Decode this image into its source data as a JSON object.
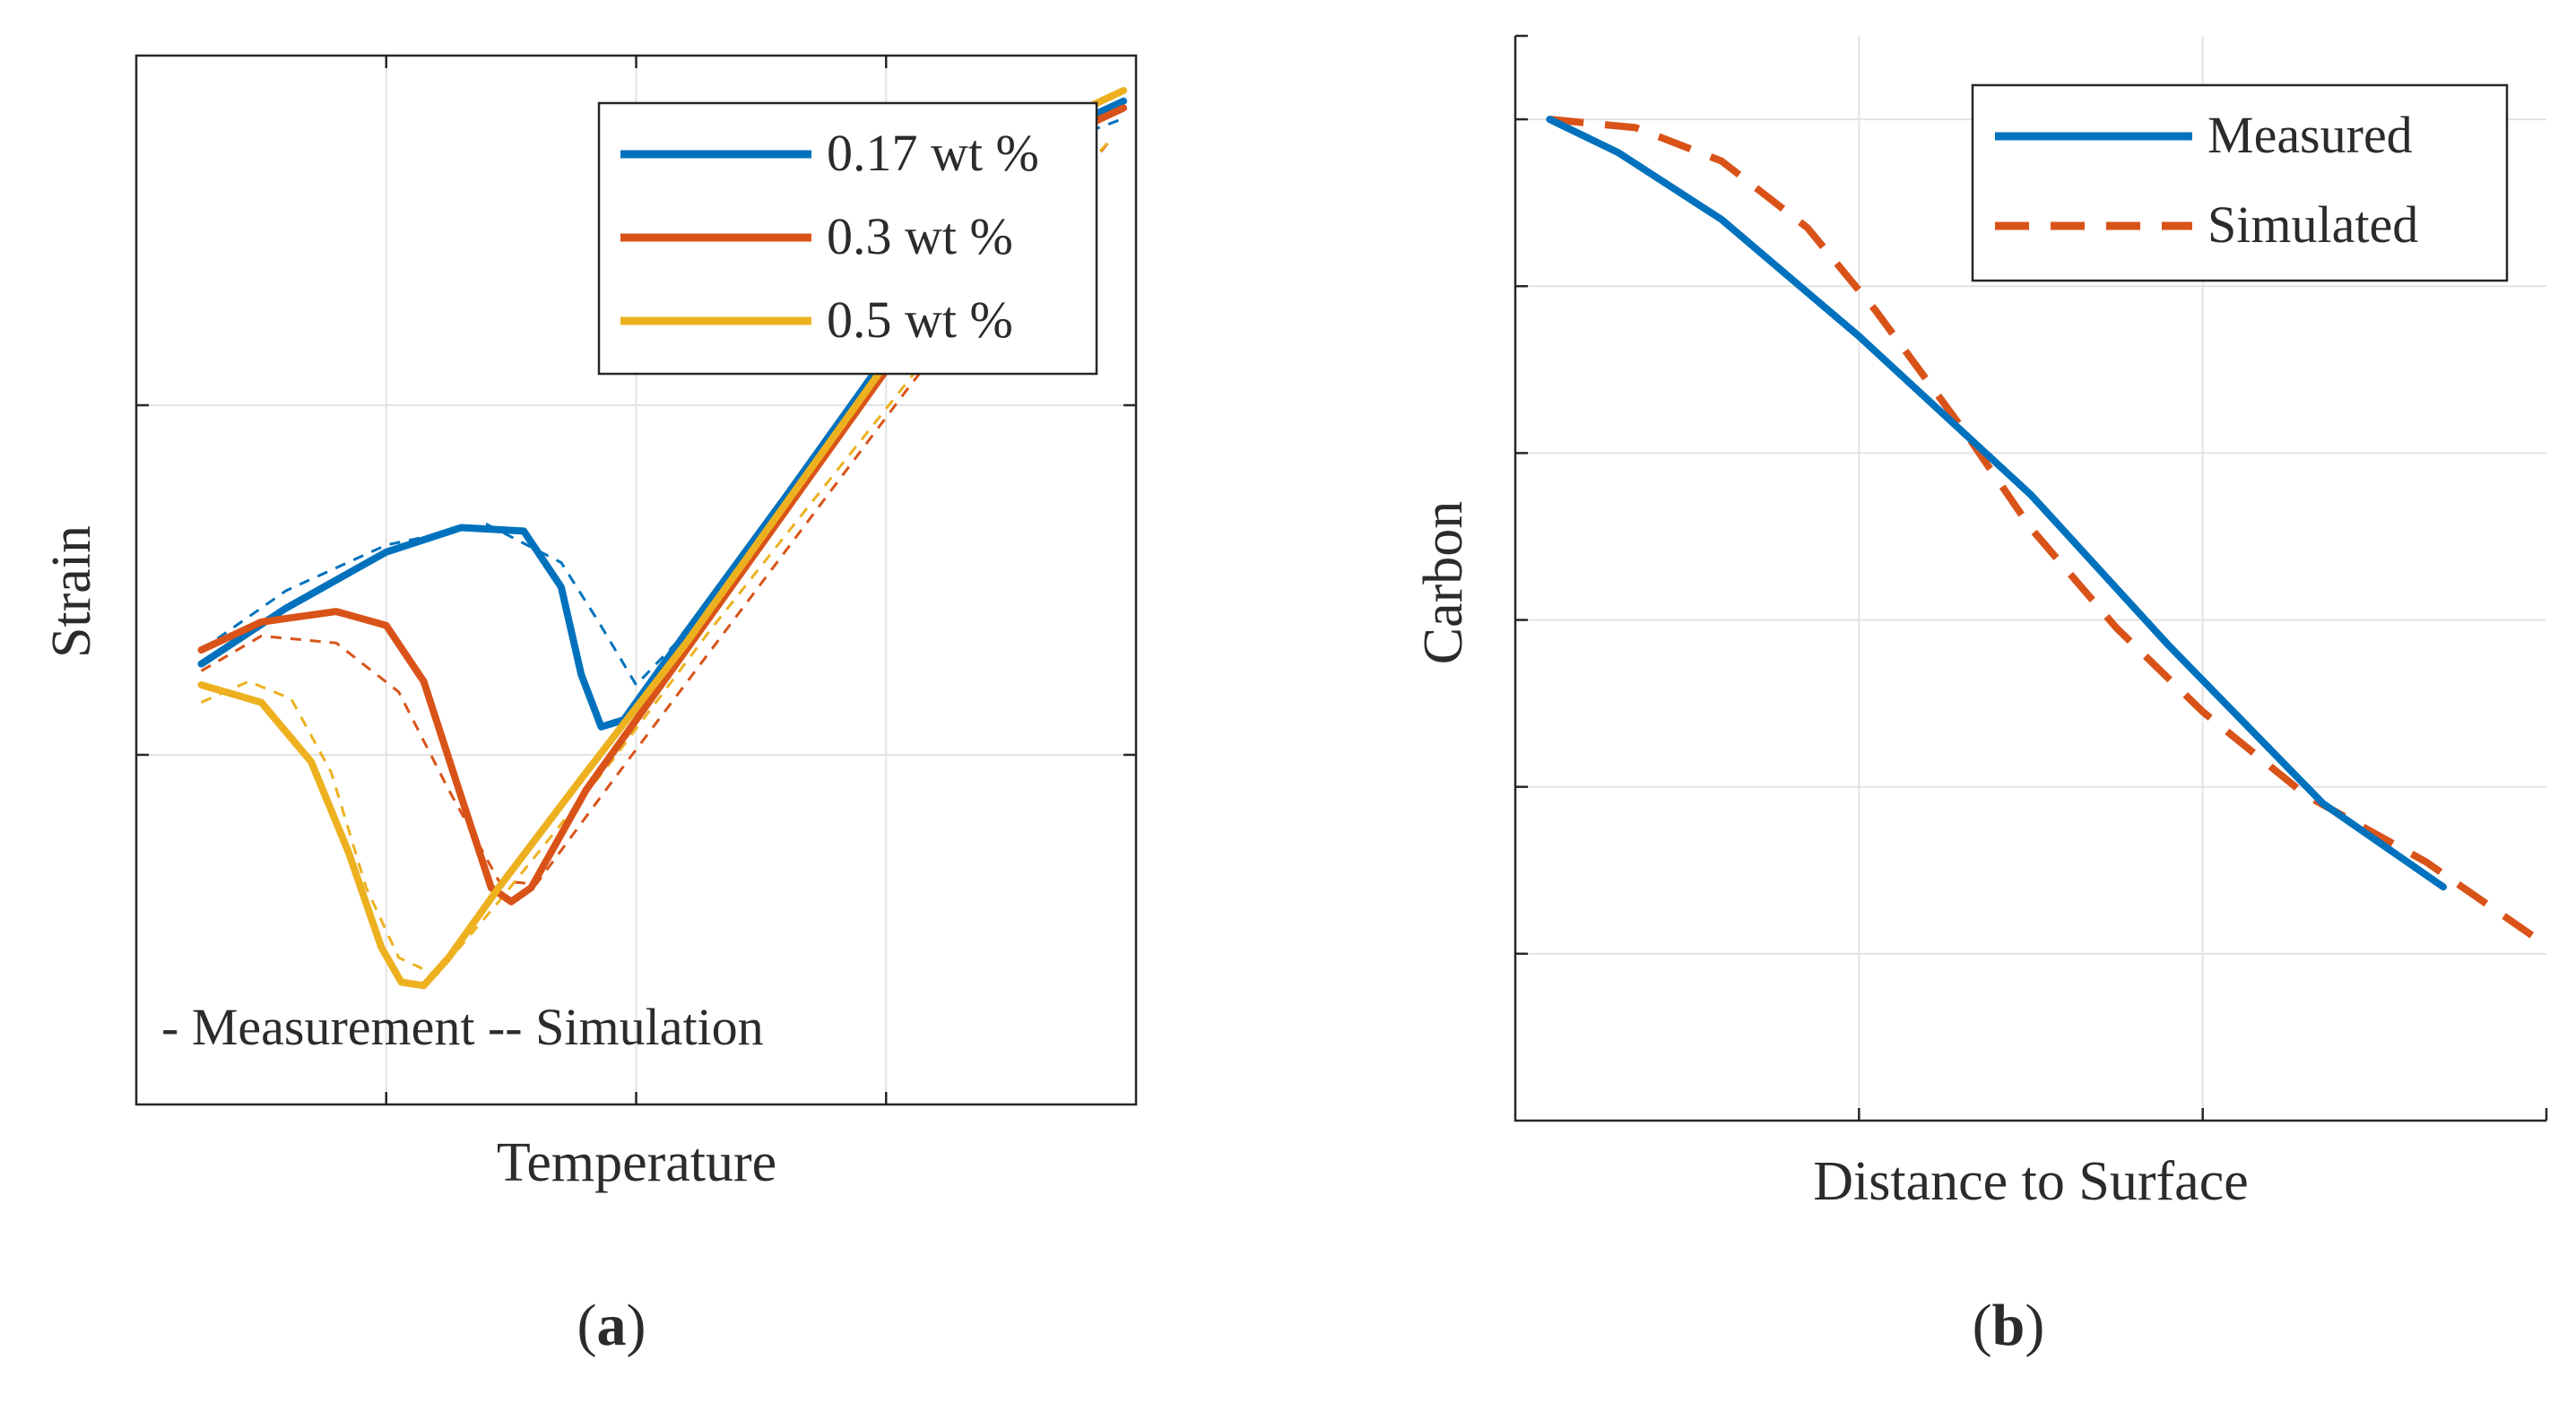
{
  "colors": {
    "blue": "#0072BD",
    "orange": "#D95319",
    "yellow": "#EDB120"
  },
  "panels": {
    "a": {
      "label_open": "(",
      "label_letter": "a",
      "label_close": ")"
    },
    "b": {
      "label_open": "(",
      "label_letter": "b",
      "label_close": ")"
    }
  },
  "chart_data": [
    {
      "type": "line",
      "xlabel": "Temperature",
      "ylabel": "Strain",
      "xlim": [
        0,
        4
      ],
      "ylim": [
        0,
        3
      ],
      "grid": true,
      "legend_position": "top-right",
      "annotation": "- Measurement -- Simulation",
      "series": [
        {
          "name": "0.17 wt %",
          "color": "#0072BD",
          "style": "solid",
          "x": [
            0.26,
            0.6,
            1.0,
            1.3,
            1.55,
            1.7,
            1.78,
            1.86,
            1.95,
            2.2,
            2.6,
            3.0,
            3.4,
            3.8,
            3.95
          ],
          "y": [
            1.26,
            1.42,
            1.58,
            1.65,
            1.64,
            1.48,
            1.23,
            1.08,
            1.1,
            1.35,
            1.74,
            2.14,
            2.54,
            2.82,
            2.87
          ]
        },
        {
          "name": "0.17 wt %",
          "color": "#0072BD",
          "style": "dashed",
          "x": [
            0.26,
            0.6,
            1.0,
            1.4,
            1.7,
            1.85,
            2.0,
            2.2,
            2.6,
            3.0,
            3.4,
            3.8,
            3.95
          ],
          "y": [
            1.3,
            1.47,
            1.6,
            1.66,
            1.55,
            1.38,
            1.2,
            1.35,
            1.74,
            2.12,
            2.52,
            2.78,
            2.82
          ]
        },
        {
          "name": "0.3 wt %",
          "color": "#D95319",
          "style": "solid",
          "x": [
            0.26,
            0.5,
            0.8,
            1.0,
            1.15,
            1.3,
            1.42,
            1.5,
            1.58,
            1.8,
            2.2,
            2.6,
            3.0,
            3.4,
            3.8,
            3.95
          ],
          "y": [
            1.3,
            1.38,
            1.41,
            1.37,
            1.21,
            0.88,
            0.62,
            0.58,
            0.62,
            0.9,
            1.3,
            1.7,
            2.1,
            2.5,
            2.8,
            2.85
          ]
        },
        {
          "name": "0.3 wt %",
          "color": "#D95319",
          "style": "dashed",
          "x": [
            0.26,
            0.5,
            0.8,
            1.05,
            1.25,
            1.45,
            1.6,
            1.9,
            2.3,
            2.7,
            3.1,
            3.5,
            3.9
          ],
          "y": [
            1.24,
            1.34,
            1.32,
            1.18,
            0.9,
            0.64,
            0.63,
            0.92,
            1.3,
            1.68,
            2.06,
            2.42,
            2.76
          ]
        },
        {
          "name": "0.5 wt %",
          "color": "#EDB120",
          "style": "solid",
          "x": [
            0.26,
            0.5,
            0.7,
            0.85,
            0.98,
            1.06,
            1.15,
            1.25,
            1.45,
            1.8,
            2.2,
            2.6,
            3.0,
            3.4,
            3.8,
            3.95
          ],
          "y": [
            1.2,
            1.15,
            0.98,
            0.72,
            0.45,
            0.35,
            0.34,
            0.42,
            0.62,
            0.95,
            1.32,
            1.72,
            2.12,
            2.52,
            2.85,
            2.9
          ]
        },
        {
          "name": "0.5 wt %",
          "color": "#EDB120",
          "style": "dashed",
          "x": [
            0.26,
            0.45,
            0.62,
            0.78,
            0.92,
            1.05,
            1.2,
            1.45,
            1.9,
            2.3,
            2.7,
            3.1,
            3.5,
            3.9
          ],
          "y": [
            1.15,
            1.21,
            1.16,
            0.95,
            0.62,
            0.42,
            0.37,
            0.58,
            0.98,
            1.36,
            1.72,
            2.08,
            2.46,
            2.76
          ]
        }
      ]
    },
    {
      "type": "line",
      "xlabel": "Distance to Surface",
      "ylabel": "Carbon",
      "xlim": [
        0,
        3
      ],
      "ylim": [
        0,
        6.5
      ],
      "grid": true,
      "legend_position": "top-right",
      "series": [
        {
          "name": "Measured",
          "color": "#0072BD",
          "style": "solid",
          "x": [
            0.1,
            0.3,
            0.6,
            1.0,
            1.5,
            1.9,
            2.35,
            2.7
          ],
          "y": [
            6.0,
            5.8,
            5.4,
            4.7,
            3.75,
            2.85,
            1.9,
            1.4
          ]
        },
        {
          "name": "Simulated",
          "color": "#D95319",
          "style": "dashed",
          "x": [
            0.1,
            0.35,
            0.6,
            0.85,
            1.05,
            1.3,
            1.5,
            1.75,
            2.0,
            2.3,
            2.65,
            3.0
          ],
          "y": [
            6.0,
            5.95,
            5.75,
            5.35,
            4.85,
            4.15,
            3.55,
            2.95,
            2.45,
            1.95,
            1.55,
            1.05
          ]
        }
      ]
    }
  ]
}
